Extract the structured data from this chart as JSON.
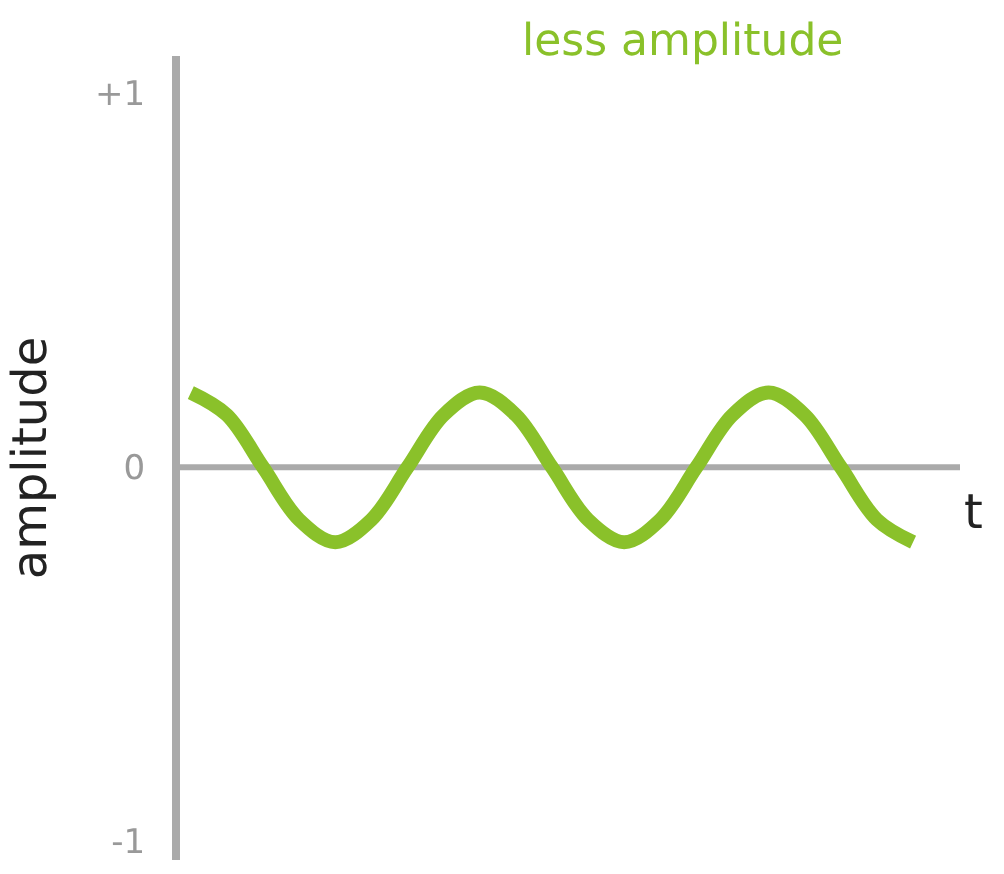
{
  "chart_data": {
    "type": "line",
    "title": "less amplitude",
    "xlabel": "t",
    "ylabel": "amplitude",
    "categories": [
      null,
      null,
      null,
      null,
      null,
      null,
      null,
      null,
      null,
      null,
      null,
      null,
      null,
      null,
      null,
      null,
      null,
      null,
      null,
      null,
      null
    ],
    "series": [
      {
        "color": "#8ac12a",
        "values": [
          0.2,
          0.14,
          0,
          -0.14,
          -0.2,
          -0.14,
          0,
          0.14,
          0.2,
          0.14,
          0,
          -0.14,
          -0.2,
          -0.14,
          0,
          0.14,
          0.2,
          0.14,
          0,
          -0.14,
          -0.2
        ]
      }
    ],
    "ylim": [
      -1.05,
      1.1
    ],
    "yticks": [
      {
        "value": 1,
        "label": "+1"
      },
      0,
      -1
    ],
    "grid": false,
    "tick_labels": "y",
    "ref_lines": [
      {
        "axis": "y",
        "value": 0,
        "color": "#aaaaaa"
      }
    ]
  }
}
